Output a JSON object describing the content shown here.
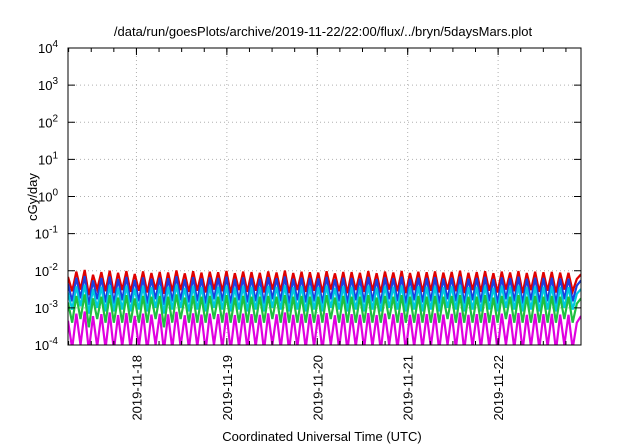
{
  "chart_data": {
    "type": "line",
    "title": "/data/run/goesPlots/archive/2019-11-22/22:00/flux/../bryn/5daysMars.plot",
    "xlabel": "Coordinated Universal Time (UTC)",
    "ylabel": "cGy/day",
    "yscale": "log",
    "ylim": [
      0.0001,
      10000
    ],
    "xlim": [
      "2019-11-17 05:50",
      "2019-11-22 22:00"
    ],
    "grid": true,
    "ytick_labels": [
      {
        "base": "10",
        "exp": "-4",
        "value": 0.0001
      },
      {
        "base": "10",
        "exp": "-3",
        "value": 0.001
      },
      {
        "base": "10",
        "exp": "-2",
        "value": 0.01
      },
      {
        "base": "10",
        "exp": "-1",
        "value": 0.1
      },
      {
        "base": "10",
        "exp": "0",
        "value": 1
      },
      {
        "base": "10",
        "exp": "1",
        "value": 10
      },
      {
        "base": "10",
        "exp": "2",
        "value": 100
      },
      {
        "base": "10",
        "exp": "3",
        "value": 1000
      },
      {
        "base": "10",
        "exp": "4",
        "value": 10000
      }
    ],
    "xtick_labels": [
      "2019-11-18",
      "2019-11-19",
      "2019-11-20",
      "2019-11-21",
      "2019-11-22"
    ],
    "series": [
      {
        "color": "#e00000",
        "values": [
          0.0068,
          0.0028,
          0.0095,
          0.0031,
          0.0105,
          0.0022,
          0.0078,
          0.0032,
          0.0092,
          0.0028,
          0.01,
          0.0025,
          0.0088,
          0.003,
          0.0098,
          0.0027,
          0.0082,
          0.0029,
          0.0096,
          0.0026,
          0.0087,
          0.0031,
          0.0093,
          0.0024,
          0.009,
          0.0028,
          0.0102,
          0.003,
          0.0085,
          0.0027,
          0.0097,
          0.0029,
          0.0089,
          0.0026,
          0.0094,
          0.0031,
          0.0091,
          0.0028,
          0.0099,
          0.0025,
          0.0086,
          0.003,
          0.0095,
          0.0027,
          0.0092,
          0.0029,
          0.0088,
          0.0026,
          0.0096,
          0.0031,
          0.009,
          0.0028,
          0.0101,
          0.0025,
          0.0087,
          0.003,
          0.0094,
          0.0027,
          0.0091,
          0.0029,
          0.0089,
          0.0026,
          0.0097,
          0.0031,
          0.0085,
          0.0028,
          0.0093,
          0.0025,
          0.0092,
          0.003,
          0.0088,
          0.0027,
          0.0098,
          0.0029,
          0.0086,
          0.0026,
          0.0095,
          0.0031,
          0.009,
          0.0028,
          0.0099,
          0.0025,
          0.0087,
          0.003,
          0.0094,
          0.0027,
          0.0091,
          0.0029,
          0.0096,
          0.0026,
          0.0089,
          0.0031,
          0.0093,
          0.0028,
          0.01,
          0.0025,
          0.0088,
          0.003,
          0.0092,
          0.0027,
          0.0097,
          0.0029,
          0.0086,
          0.0026,
          0.0095,
          0.0031,
          0.009,
          0.0028,
          0.0098,
          0.0025,
          0.0087,
          0.003,
          0.0094,
          0.0027,
          0.0091,
          0.0029,
          0.0093,
          0.0026,
          0.0089,
          0.0031,
          0.0088,
          0.0028,
          0.006,
          0.008
        ]
      },
      {
        "color": "#1a3fe0",
        "values": [
          0.0045,
          0.0015,
          0.0065,
          0.0018,
          0.0072,
          0.0012,
          0.0055,
          0.0017,
          0.0064,
          0.0014,
          0.007,
          0.0013,
          0.006,
          0.0016,
          0.0068,
          0.0014,
          0.0057,
          0.0015,
          0.0066,
          0.0013,
          0.0061,
          0.0017,
          0.0065,
          0.0012,
          0.0063,
          0.0015,
          0.0071,
          0.0016,
          0.0059,
          0.0014,
          0.0067,
          0.0015,
          0.0062,
          0.0013,
          0.0066,
          0.0017,
          0.0064,
          0.0015,
          0.0069,
          0.0013,
          0.006,
          0.0016,
          0.0066,
          0.0014,
          0.0064,
          0.0015,
          0.0061,
          0.0013,
          0.0067,
          0.0017,
          0.0063,
          0.0015,
          0.007,
          0.0013,
          0.0061,
          0.0016,
          0.0065,
          0.0014,
          0.0064,
          0.0015,
          0.0062,
          0.0013,
          0.0068,
          0.0017,
          0.0059,
          0.0015,
          0.0065,
          0.0013,
          0.0064,
          0.0016,
          0.0061,
          0.0014,
          0.0068,
          0.0015,
          0.006,
          0.0013,
          0.0066,
          0.0017,
          0.0063,
          0.0015,
          0.0069,
          0.0013,
          0.0061,
          0.0016,
          0.0065,
          0.0014,
          0.0064,
          0.0015,
          0.0067,
          0.0013,
          0.0062,
          0.0017,
          0.0065,
          0.0015,
          0.007,
          0.0013,
          0.0061,
          0.0016,
          0.0064,
          0.0014,
          0.0068,
          0.0015,
          0.006,
          0.0013,
          0.0066,
          0.0017,
          0.0063,
          0.0015,
          0.0069,
          0.0013,
          0.0061,
          0.0016,
          0.0065,
          0.0014,
          0.0064,
          0.0015,
          0.0065,
          0.0013,
          0.0062,
          0.0017,
          0.0061,
          0.0015,
          0.004,
          0.0055
        ]
      },
      {
        "color": "#00c8e0",
        "values": [
          0.0026,
          0.0009,
          0.0038,
          0.0011,
          0.0042,
          0.0007,
          0.0032,
          0.001,
          0.0037,
          0.0008,
          0.0041,
          0.0008,
          0.0035,
          0.0009,
          0.004,
          0.0008,
          0.0033,
          0.0009,
          0.0039,
          0.0008,
          0.0036,
          0.001,
          0.0038,
          0.0007,
          0.0037,
          0.0009,
          0.0042,
          0.001,
          0.0034,
          0.0008,
          0.0039,
          0.0009,
          0.0036,
          0.0008,
          0.0039,
          0.001,
          0.0037,
          0.0009,
          0.004,
          0.0008,
          0.0035,
          0.0009,
          0.0039,
          0.0008,
          0.0037,
          0.0009,
          0.0036,
          0.0008,
          0.0039,
          0.001,
          0.0037,
          0.0009,
          0.0041,
          0.0008,
          0.0036,
          0.0009,
          0.0038,
          0.0008,
          0.0037,
          0.0009,
          0.0036,
          0.0008,
          0.004,
          0.001,
          0.0034,
          0.0009,
          0.0038,
          0.0008,
          0.0037,
          0.0009,
          0.0036,
          0.0008,
          0.004,
          0.0009,
          0.0035,
          0.0008,
          0.0039,
          0.001,
          0.0037,
          0.0009,
          0.004,
          0.0008,
          0.0036,
          0.0009,
          0.0038,
          0.0008,
          0.0037,
          0.0009,
          0.0039,
          0.0008,
          0.0036,
          0.001,
          0.0038,
          0.0009,
          0.0041,
          0.0008,
          0.0036,
          0.0009,
          0.0037,
          0.0008,
          0.004,
          0.0009,
          0.0035,
          0.0008,
          0.0039,
          0.001,
          0.0037,
          0.0009,
          0.004,
          0.0008,
          0.0036,
          0.0009,
          0.0038,
          0.0008,
          0.0037,
          0.0009,
          0.0038,
          0.0008,
          0.0036,
          0.001,
          0.0036,
          0.0009,
          0.0024,
          0.0032
        ]
      },
      {
        "color": "#20c040",
        "values": [
          0.0014,
          0.0004,
          0.0021,
          0.0005,
          0.0023,
          0.0003,
          0.0018,
          0.0005,
          0.002,
          0.0004,
          0.0022,
          0.0004,
          0.0019,
          0.0004,
          0.0022,
          0.0004,
          0.0018,
          0.0004,
          0.0021,
          0.0004,
          0.002,
          0.0005,
          0.0021,
          0.0003,
          0.002,
          0.0004,
          0.0023,
          0.0005,
          0.0019,
          0.0004,
          0.0021,
          0.0004,
          0.002,
          0.0004,
          0.0021,
          0.0005,
          0.002,
          0.0004,
          0.0022,
          0.0004,
          0.0019,
          0.0004,
          0.0021,
          0.0004,
          0.002,
          0.0004,
          0.002,
          0.0004,
          0.0021,
          0.0005,
          0.002,
          0.0004,
          0.0022,
          0.0004,
          0.002,
          0.0004,
          0.0021,
          0.0004,
          0.002,
          0.0004,
          0.002,
          0.0004,
          0.0022,
          0.0005,
          0.0019,
          0.0004,
          0.0021,
          0.0004,
          0.002,
          0.0004,
          0.002,
          0.0004,
          0.0022,
          0.0004,
          0.0019,
          0.0004,
          0.0021,
          0.0005,
          0.002,
          0.0004,
          0.0022,
          0.0004,
          0.002,
          0.0004,
          0.0021,
          0.0004,
          0.002,
          0.0004,
          0.0021,
          0.0004,
          0.002,
          0.0005,
          0.0021,
          0.0004,
          0.0022,
          0.0004,
          0.002,
          0.0004,
          0.002,
          0.0004,
          0.0022,
          0.0004,
          0.0019,
          0.0004,
          0.0021,
          0.0005,
          0.002,
          0.0004,
          0.0022,
          0.0004,
          0.002,
          0.0004,
          0.0021,
          0.0004,
          0.002,
          0.0004,
          0.0021,
          0.0004,
          0.002,
          0.0005,
          0.002,
          0.0004,
          0.0013,
          0.0018
        ]
      },
      {
        "color": "#e000e0",
        "values": [
          0.00045,
          8e-05,
          0.0007,
          0.0001,
          0.0008,
          7e-05,
          0.0006,
          9e-05,
          0.00068,
          8e-05,
          0.00075,
          7e-05,
          0.00064,
          9e-05,
          0.00072,
          8e-05,
          0.00061,
          9e-05,
          0.0007,
          7e-05,
          0.00066,
          0.0001,
          0.00069,
          7e-05,
          0.00067,
          8e-05,
          0.00078,
          9e-05,
          0.00063,
          8e-05,
          0.00071,
          9e-05,
          0.00066,
          7e-05,
          0.0007,
          0.0001,
          0.00068,
          8e-05,
          0.00073,
          7e-05,
          0.00064,
          9e-05,
          0.0007,
          8e-05,
          0.00068,
          9e-05,
          0.00065,
          7e-05,
          0.00071,
          0.0001,
          0.00067,
          8e-05,
          0.00075,
          7e-05,
          0.00065,
          9e-05,
          0.00069,
          8e-05,
          0.00068,
          9e-05,
          0.00066,
          7e-05,
          0.00072,
          0.0001,
          0.00063,
          8e-05,
          0.00069,
          7e-05,
          0.00068,
          9e-05,
          0.00065,
          8e-05,
          0.00072,
          9e-05,
          0.00064,
          7e-05,
          0.0007,
          0.0001,
          0.00067,
          8e-05,
          0.00073,
          7e-05,
          0.00065,
          9e-05,
          0.00069,
          8e-05,
          0.00068,
          9e-05,
          0.00071,
          7e-05,
          0.00066,
          0.0001,
          0.00069,
          8e-05,
          0.00074,
          7e-05,
          0.00065,
          9e-05,
          0.00068,
          8e-05,
          0.00072,
          9e-05,
          0.00064,
          7e-05,
          0.0007,
          0.0001,
          0.00067,
          8e-05,
          0.00073,
          7e-05,
          0.00065,
          9e-05,
          0.00069,
          8e-05,
          0.00068,
          9e-05,
          0.00069,
          7e-05,
          0.00066,
          0.0001,
          0.00065,
          8e-05,
          0.0004,
          0.0006
        ]
      }
    ]
  }
}
